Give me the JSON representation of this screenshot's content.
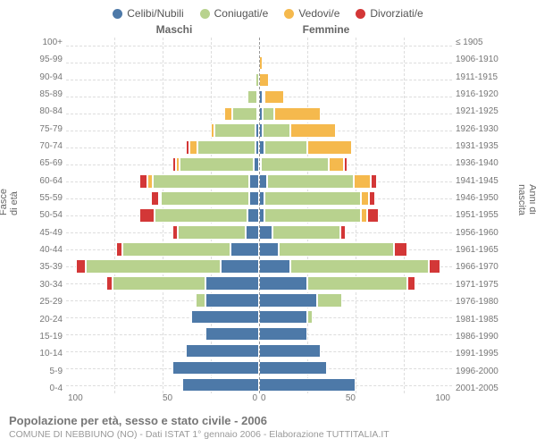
{
  "type": "population-pyramid",
  "colors": {
    "celibi": "#4d79a8",
    "coniugati": "#b8d28e",
    "vedovi": "#f5b94d",
    "divorziati": "#d33737",
    "background": "#ffffff",
    "grid": "#dddddd",
    "center": "#999999",
    "text": "#666666"
  },
  "legend": [
    {
      "label": "Celibi/Nubili",
      "key": "celibi"
    },
    {
      "label": "Coniugati/e",
      "key": "coniugati"
    },
    {
      "label": "Vedovi/e",
      "key": "vedovi"
    },
    {
      "label": "Divorziati/e",
      "key": "divorziati"
    }
  ],
  "gender_left": "Maschi",
  "gender_right": "Femmine",
  "axis_left_title": "Fasce di età",
  "axis_right_title": "Anni di nascita",
  "xmax": 100,
  "xticks": [
    0,
    50,
    100
  ],
  "age_labels": [
    "100+",
    "95-99",
    "90-94",
    "85-89",
    "80-84",
    "75-79",
    "70-74",
    "65-69",
    "60-64",
    "55-59",
    "50-54",
    "45-49",
    "40-44",
    "35-39",
    "30-34",
    "25-29",
    "20-24",
    "15-19",
    "10-14",
    "5-9",
    "0-4"
  ],
  "year_labels": [
    "≤ 1905",
    "1906-1910",
    "1911-1915",
    "1916-1920",
    "1921-1925",
    "1926-1930",
    "1931-1935",
    "1936-1940",
    "1941-1945",
    "1946-1950",
    "1951-1955",
    "1956-1960",
    "1961-1965",
    "1966-1970",
    "1971-1975",
    "1976-1980",
    "1981-1985",
    "1986-1990",
    "1991-1995",
    "1996-2000",
    "2001-2005"
  ],
  "male": [
    {
      "c": 0,
      "m": 0,
      "v": 0,
      "d": 0
    },
    {
      "c": 0,
      "m": 0,
      "v": 1,
      "d": 0
    },
    {
      "c": 0,
      "m": 2,
      "v": 1,
      "d": 0
    },
    {
      "c": 1,
      "m": 5,
      "v": 1,
      "d": 0
    },
    {
      "c": 1,
      "m": 13,
      "v": 4,
      "d": 0
    },
    {
      "c": 2,
      "m": 21,
      "v": 2,
      "d": 0
    },
    {
      "c": 2,
      "m": 30,
      "v": 4,
      "d": 2
    },
    {
      "c": 3,
      "m": 38,
      "v": 2,
      "d": 2
    },
    {
      "c": 5,
      "m": 50,
      "v": 3,
      "d": 4
    },
    {
      "c": 5,
      "m": 46,
      "v": 1,
      "d": 4
    },
    {
      "c": 6,
      "m": 48,
      "v": 0,
      "d": 8
    },
    {
      "c": 7,
      "m": 35,
      "v": 0,
      "d": 3
    },
    {
      "c": 15,
      "m": 56,
      "v": 0,
      "d": 3
    },
    {
      "c": 20,
      "m": 70,
      "v": 0,
      "d": 5
    },
    {
      "c": 28,
      "m": 48,
      "v": 0,
      "d": 3
    },
    {
      "c": 28,
      "m": 5,
      "v": 0,
      "d": 0
    },
    {
      "c": 35,
      "m": 1,
      "v": 0,
      "d": 0
    },
    {
      "c": 28,
      "m": 0,
      "v": 0,
      "d": 0
    },
    {
      "c": 38,
      "m": 0,
      "v": 0,
      "d": 0
    },
    {
      "c": 45,
      "m": 0,
      "v": 0,
      "d": 0
    },
    {
      "c": 40,
      "m": 0,
      "v": 0,
      "d": 0
    }
  ],
  "female": [
    {
      "c": 0,
      "m": 0,
      "v": 0,
      "d": 0
    },
    {
      "c": 0,
      "m": 0,
      "v": 2,
      "d": 0
    },
    {
      "c": 0,
      "m": 0,
      "v": 5,
      "d": 0
    },
    {
      "c": 2,
      "m": 1,
      "v": 10,
      "d": 0
    },
    {
      "c": 2,
      "m": 6,
      "v": 24,
      "d": 0
    },
    {
      "c": 2,
      "m": 14,
      "v": 24,
      "d": 0
    },
    {
      "c": 3,
      "m": 22,
      "v": 23,
      "d": 1
    },
    {
      "c": 1,
      "m": 35,
      "v": 8,
      "d": 2
    },
    {
      "c": 4,
      "m": 45,
      "v": 9,
      "d": 3
    },
    {
      "c": 3,
      "m": 50,
      "v": 4,
      "d": 3
    },
    {
      "c": 3,
      "m": 50,
      "v": 3,
      "d": 6
    },
    {
      "c": 7,
      "m": 35,
      "v": 0,
      "d": 3
    },
    {
      "c": 10,
      "m": 60,
      "v": 0,
      "d": 7
    },
    {
      "c": 16,
      "m": 72,
      "v": 0,
      "d": 6
    },
    {
      "c": 25,
      "m": 52,
      "v": 0,
      "d": 4
    },
    {
      "c": 30,
      "m": 13,
      "v": 0,
      "d": 0
    },
    {
      "c": 25,
      "m": 3,
      "v": 0,
      "d": 0
    },
    {
      "c": 25,
      "m": 0,
      "v": 0,
      "d": 0
    },
    {
      "c": 32,
      "m": 0,
      "v": 0,
      "d": 0
    },
    {
      "c": 35,
      "m": 0,
      "v": 0,
      "d": 0
    },
    {
      "c": 50,
      "m": 0,
      "v": 0,
      "d": 0
    }
  ],
  "footer_title": "Popolazione per età, sesso e stato civile - 2006",
  "footer_sub": "COMUNE DI NEBBIUNO (NO) - Dati ISTAT 1° gennaio 2006 - Elaborazione TUTTITALIA.IT"
}
